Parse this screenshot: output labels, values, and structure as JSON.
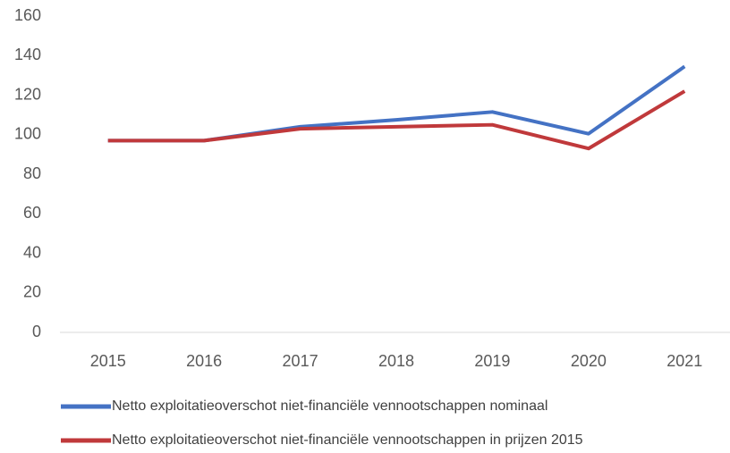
{
  "chart_data": {
    "type": "line",
    "categories": [
      "2015",
      "2016",
      "2017",
      "2018",
      "2019",
      "2020",
      "2021"
    ],
    "series": [
      {
        "name": "Netto exploitatieoverschot niet-financiële vennootschappen nominaal",
        "color": "#4472c4",
        "values": [
          97,
          97,
          104,
          107.5,
          111.5,
          100.5,
          134.5
        ]
      },
      {
        "name": "Netto exploitatieoverschot niet-financiële vennootschappen in prijzen 2015",
        "color": "#c0393b",
        "values": [
          97,
          97,
          103,
          104,
          105,
          93,
          122
        ]
      }
    ],
    "ylim": [
      0,
      160
    ],
    "yticks": [
      0,
      20,
      40,
      60,
      80,
      100,
      120,
      140,
      160
    ],
    "grid": false
  }
}
